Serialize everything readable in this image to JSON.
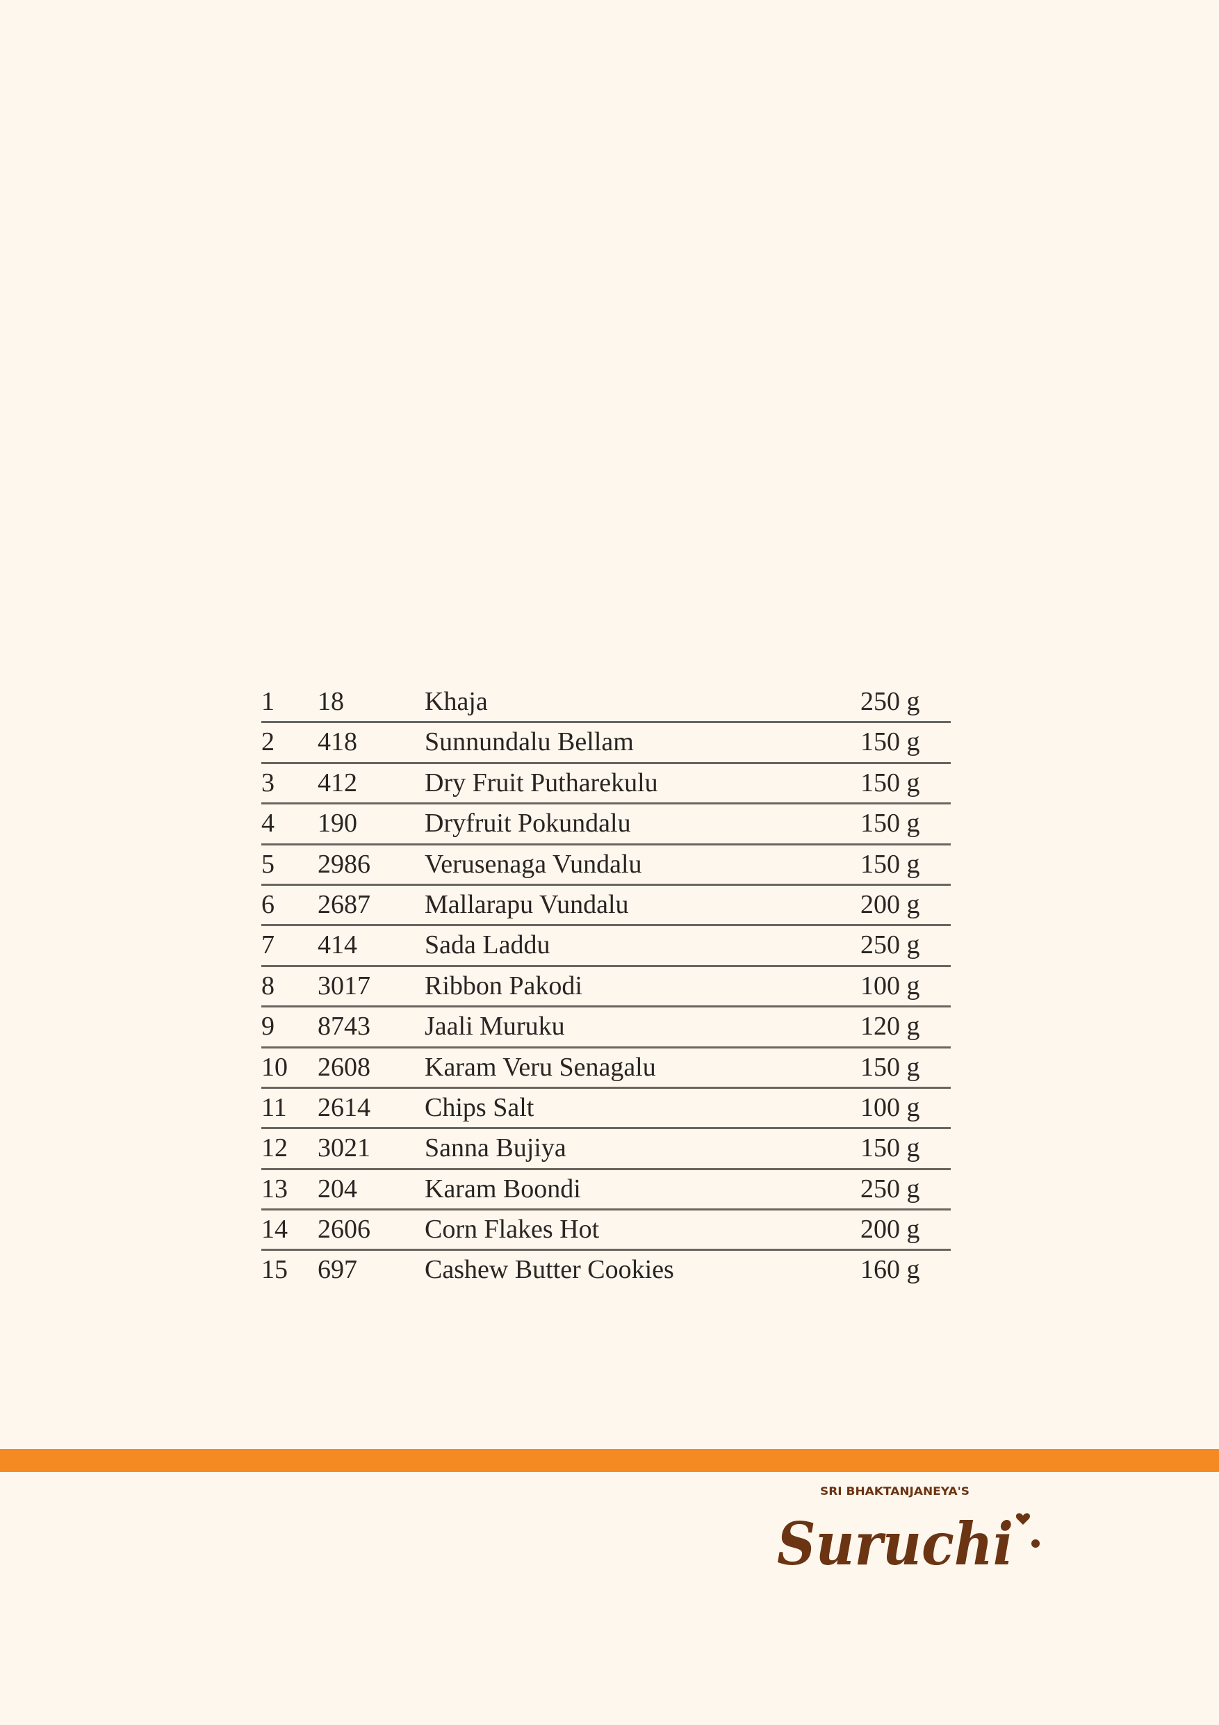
{
  "items": [
    {
      "no": "1",
      "code": "18",
      "name": "Khaja",
      "weight": "250 g"
    },
    {
      "no": "2",
      "code": "418",
      "name": "Sunnundalu Bellam",
      "weight": "150 g"
    },
    {
      "no": "3",
      "code": "412",
      "name": "Dry Fruit Putharekulu",
      "weight": "150 g"
    },
    {
      "no": "4",
      "code": "190",
      "name": "Dryfruit Pokundalu",
      "weight": "150 g"
    },
    {
      "no": "5",
      "code": "2986",
      "name": "Verusenaga Vundalu",
      "weight": "150 g"
    },
    {
      "no": "6",
      "code": "2687",
      "name": "Mallarapu Vundalu",
      "weight": "200 g"
    },
    {
      "no": "7",
      "code": "414",
      "name": "Sada Laddu",
      "weight": "250 g"
    },
    {
      "no": "8",
      "code": "3017",
      "name": "Ribbon Pakodi",
      "weight": "100 g"
    },
    {
      "no": "9",
      "code": "8743",
      "name": "Jaali Muruku",
      "weight": "120 g"
    },
    {
      "no": "10",
      "code": "2608",
      "name": "Karam Veru Senagalu",
      "weight": "150 g"
    },
    {
      "no": "11",
      "code": "2614",
      "name": "Chips Salt",
      "weight": "100 g"
    },
    {
      "no": "12",
      "code": "3021",
      "name": "Sanna Bujiya",
      "weight": "150 g"
    },
    {
      "no": "13",
      "code": "204",
      "name": "Karam Boondi",
      "weight": "250 g"
    },
    {
      "no": "14",
      "code": "2606",
      "name": "Corn Flakes Hot",
      "weight": "200 g"
    },
    {
      "no": "15",
      "code": "697",
      "name": "Cashew Butter Cookies",
      "weight": "160 g"
    }
  ],
  "logo": {
    "prefix": "SRI BHAKTANJANEYA'S",
    "name": "Suruchi"
  },
  "colors": {
    "background": "#fdf7ee",
    "accent_bar": "#f58a23",
    "logo": "#6b3413",
    "text": "#2a2522"
  }
}
